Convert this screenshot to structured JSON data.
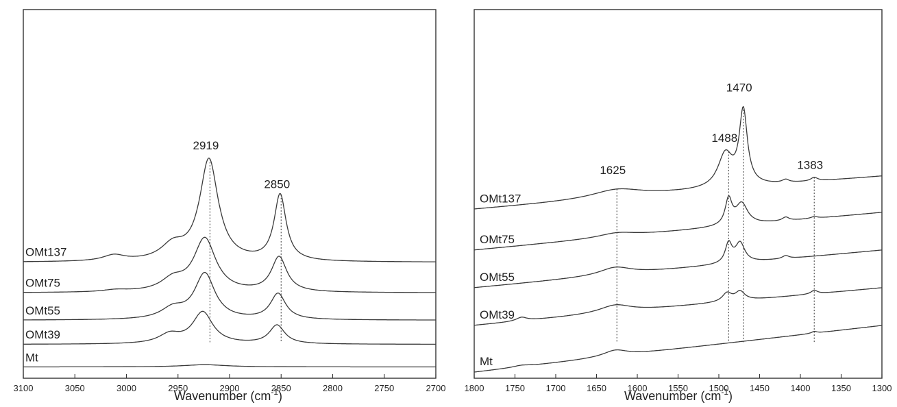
{
  "chart_data": [
    {
      "type": "line",
      "xlabel": "Wavenumber (cm",
      "xlabel_sup": "-1",
      "xlabel_close": ")",
      "xlim": [
        3100,
        2700
      ],
      "x_reversed": true,
      "y_axis_shown": false,
      "x_ticks": [
        "3100",
        "3050",
        "3000",
        "2950",
        "2900",
        "2850",
        "2800",
        "2750",
        "2700"
      ],
      "peak_markers": [
        {
          "label": "2919",
          "x": 2919
        },
        {
          "label": "2850",
          "x": 2850
        }
      ],
      "series": [
        {
          "name": "OMt137",
          "offset": 3.6,
          "baseline": 0.0,
          "peaks": [
            [
              3012,
              0.18,
              13
            ],
            [
              2955,
              0.45,
              14
            ],
            [
              2920,
              3.15,
              11
            ],
            [
              2851,
              2.05,
              7
            ]
          ]
        },
        {
          "name": "OMt75",
          "offset": 2.65,
          "baseline": 0.0,
          "peaks": [
            [
              3010,
              0.06,
              15
            ],
            [
              2955,
              0.35,
              14
            ],
            [
              2924,
              1.65,
              13
            ],
            [
              2852,
              1.08,
              9
            ]
          ]
        },
        {
          "name": "OMt55",
          "offset": 1.8,
          "baseline": 0.0,
          "peaks": [
            [
              2955,
              0.32,
              14
            ],
            [
              2924,
              1.42,
              12
            ],
            [
              2853,
              0.8,
              9
            ]
          ]
        },
        {
          "name": "OMt39",
          "offset": 1.05,
          "baseline": 0.0,
          "peaks": [
            [
              2958,
              0.28,
              13
            ],
            [
              2926,
              0.98,
              12
            ],
            [
              2854,
              0.58,
              9
            ]
          ]
        },
        {
          "name": "Mt",
          "offset": 0.35,
          "baseline": 0.0,
          "peaks": [
            [
              2924,
              0.07,
              25
            ]
          ]
        }
      ]
    },
    {
      "type": "line",
      "xlabel": "Wavenumber (cm",
      "xlabel_sup": "-1",
      "xlabel_close": ")",
      "xlim": [
        1800,
        1300
      ],
      "x_reversed": true,
      "y_axis_shown": false,
      "x_ticks": [
        "1800",
        "1750",
        "1700",
        "1650",
        "1600",
        "1550",
        "1500",
        "1450",
        "1400",
        "1350",
        "1300"
      ],
      "peak_markers": [
        {
          "label": "1625",
          "x": 1625
        },
        {
          "label": "1488",
          "x": 1488
        },
        {
          "label": "1470",
          "x": 1470
        },
        {
          "label": "1383",
          "x": 1383
        }
      ],
      "series": [
        {
          "name": "OMt137",
          "offset": 5.6,
          "slope": 1.1,
          "peaks": [
            [
              1625,
              0.28,
              38
            ],
            [
              1492,
              1.1,
              11
            ],
            [
              1470,
              2.45,
              6
            ],
            [
              1418,
              0.1,
              5
            ],
            [
              1383,
              0.12,
              5
            ]
          ]
        },
        {
          "name": "OMt75",
          "offset": 4.25,
          "slope": 1.25,
          "peaks": [
            [
              1625,
              0.14,
              28
            ],
            [
              1488,
              0.85,
              5
            ],
            [
              1472,
              0.7,
              9
            ],
            [
              1418,
              0.12,
              5
            ],
            [
              1383,
              0.06,
              5
            ]
          ]
        },
        {
          "name": "OMt55",
          "offset": 3.0,
          "slope": 1.25,
          "peaks": [
            [
              1627,
              0.25,
              24
            ],
            [
              1488,
              0.65,
              5
            ],
            [
              1474,
              0.65,
              7
            ],
            [
              1418,
              0.1,
              5
            ]
          ]
        },
        {
          "name": "OMt39",
          "offset": 1.75,
          "slope": 1.25,
          "peaks": [
            [
              1742,
              0.12,
              8
            ],
            [
              1627,
              0.25,
              24
            ],
            [
              1490,
              0.28,
              7
            ],
            [
              1474,
              0.3,
              7
            ],
            [
              1383,
              0.12,
              5
            ]
          ]
        },
        {
          "name": "Mt",
          "offset": 0.2,
          "slope": 1.55,
          "peaks": [
            [
              1742,
              0.05,
              12
            ],
            [
              1627,
              0.2,
              18
            ],
            [
              1383,
              0.06,
              4
            ]
          ]
        }
      ]
    }
  ]
}
